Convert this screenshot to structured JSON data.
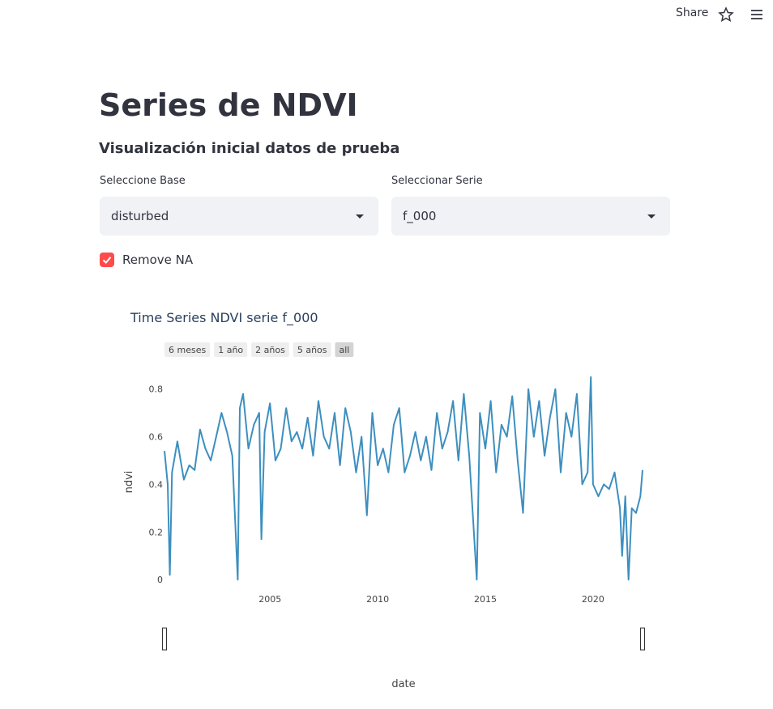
{
  "header": {
    "share": "Share"
  },
  "page": {
    "title": "Series de NDVI",
    "subtitle": "Visualización inicial datos de prueba",
    "select_base_label": "Seleccione Base",
    "select_base_value": "disturbed",
    "select_serie_label": "Seleccionar Serie",
    "select_serie_value": "f_000",
    "checkbox_label": "Remove NA"
  },
  "chart_data": {
    "type": "line",
    "title": "Time Series NDVI serie f_000",
    "range_buttons": [
      "6 meses",
      "1 año",
      "2 años",
      "5 años",
      "all"
    ],
    "x_label": "date",
    "y_label": "ndvi",
    "color": "#3d8fbf",
    "x": [
      2000.1,
      2000.25,
      2000.35,
      2000.45,
      2000.7,
      2001.0,
      2001.25,
      2001.5,
      2001.75,
      2002.0,
      2002.25,
      2002.5,
      2002.75,
      2003.0,
      2003.25,
      2003.5,
      2003.6,
      2003.75,
      2004.0,
      2004.25,
      2004.5,
      2004.6,
      2004.75,
      2005.0,
      2005.25,
      2005.5,
      2005.75,
      2006.0,
      2006.25,
      2006.5,
      2006.75,
      2007.0,
      2007.25,
      2007.5,
      2007.75,
      2008.0,
      2008.25,
      2008.5,
      2008.75,
      2009.0,
      2009.25,
      2009.5,
      2009.75,
      2010.0,
      2010.25,
      2010.5,
      2010.75,
      2011.0,
      2011.25,
      2011.5,
      2011.75,
      2012.0,
      2012.25,
      2012.5,
      2012.75,
      2013.0,
      2013.25,
      2013.5,
      2013.75,
      2014.0,
      2014.25,
      2014.6,
      2014.75,
      2015.0,
      2015.25,
      2015.5,
      2015.75,
      2016.0,
      2016.25,
      2016.5,
      2016.75,
      2017.0,
      2017.25,
      2017.5,
      2017.75,
      2018.0,
      2018.25,
      2018.5,
      2018.75,
      2019.0,
      2019.25,
      2019.5,
      2019.75,
      2019.9,
      2020.0,
      2020.25,
      2020.5,
      2020.75,
      2021.0,
      2021.25,
      2021.35,
      2021.5,
      2021.65,
      2021.8,
      2022.0,
      2022.2,
      2022.3
    ],
    "values": [
      0.54,
      0.4,
      0.02,
      0.45,
      0.58,
      0.42,
      0.48,
      0.46,
      0.63,
      0.55,
      0.5,
      0.6,
      0.7,
      0.62,
      0.52,
      0.0,
      0.72,
      0.78,
      0.55,
      0.65,
      0.7,
      0.17,
      0.62,
      0.74,
      0.5,
      0.55,
      0.72,
      0.58,
      0.62,
      0.55,
      0.68,
      0.52,
      0.75,
      0.6,
      0.55,
      0.7,
      0.48,
      0.72,
      0.62,
      0.45,
      0.6,
      0.27,
      0.7,
      0.48,
      0.55,
      0.45,
      0.65,
      0.72,
      0.45,
      0.52,
      0.62,
      0.5,
      0.6,
      0.46,
      0.7,
      0.55,
      0.62,
      0.75,
      0.5,
      0.78,
      0.52,
      0.0,
      0.7,
      0.55,
      0.75,
      0.45,
      0.65,
      0.6,
      0.77,
      0.5,
      0.28,
      0.8,
      0.6,
      0.75,
      0.52,
      0.68,
      0.8,
      0.45,
      0.7,
      0.6,
      0.78,
      0.4,
      0.45,
      0.85,
      0.4,
      0.35,
      0.4,
      0.38,
      0.45,
      0.3,
      0.1,
      0.35,
      0.0,
      0.3,
      0.28,
      0.35,
      0.46
    ],
    "xlim": [
      2000.1,
      2022.3
    ],
    "xticks": [
      2005,
      2010,
      2015,
      2020
    ],
    "ylim": [
      -0.04,
      0.86
    ],
    "yticks": [
      0,
      0.2,
      0.4,
      0.6,
      0.8
    ],
    "grid": false
  }
}
